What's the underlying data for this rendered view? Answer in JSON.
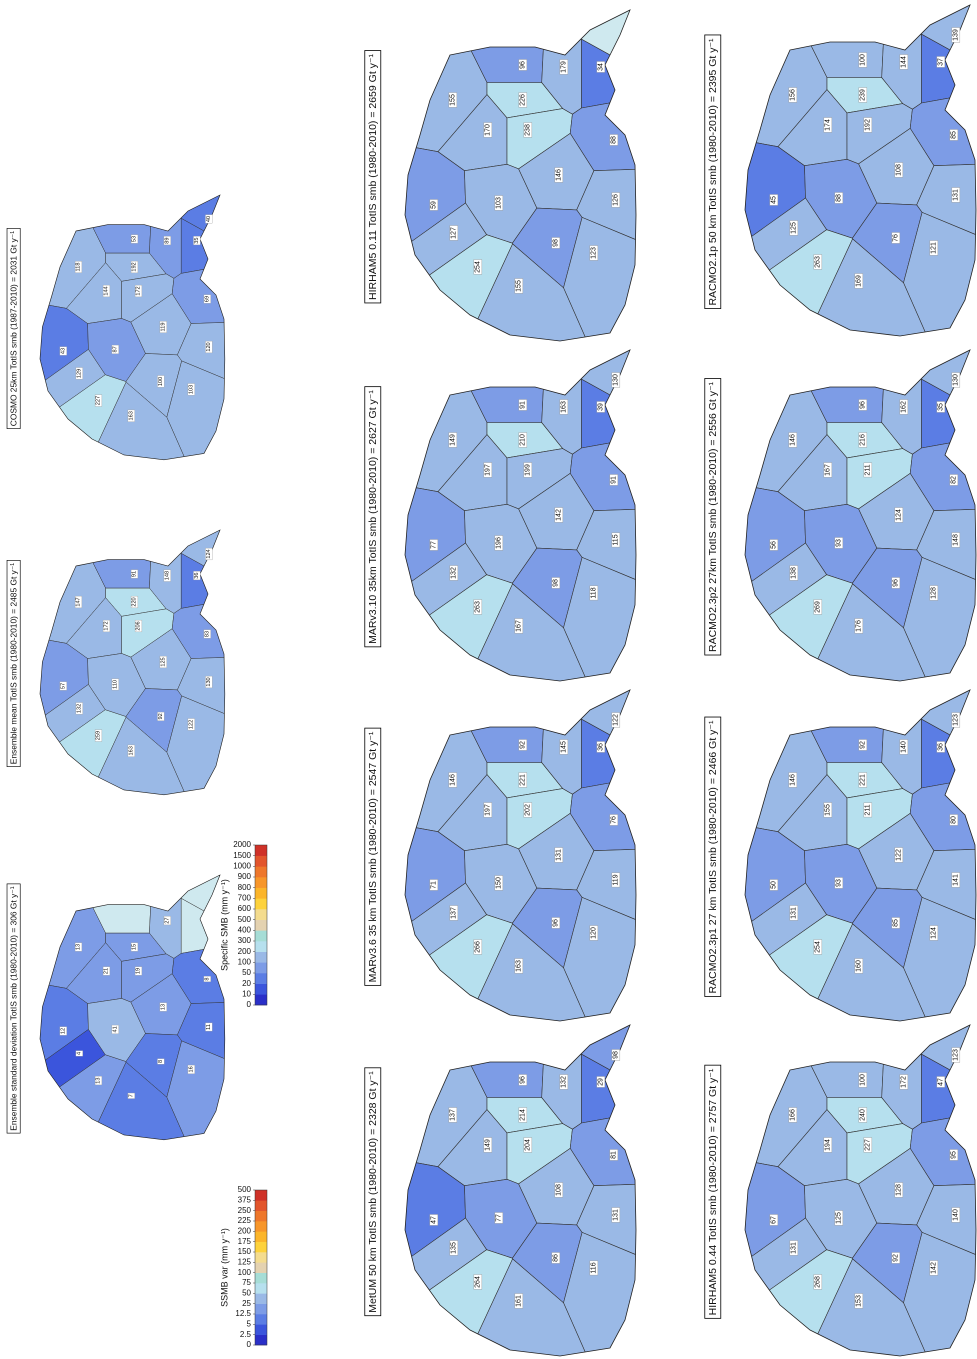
{
  "panels": [
    {
      "title": "RACMO2.1p 50 km TotIS smb (1980-2010) = 2395 Gt y⁻¹",
      "colorbar": 0,
      "values": [
        156,
        239,
        100,
        144,
        37,
        139,
        174,
        192,
        85,
        45,
        88,
        108,
        131,
        125,
        76,
        121,
        263,
        169
      ]
    },
    {
      "title": "RACMO2.3p2 27km  TotIS smb (1980-2010) = 2556 Gt y⁻¹",
      "colorbar": 0,
      "values": [
        146,
        216,
        96,
        162,
        35,
        130,
        167,
        211,
        82,
        56,
        93,
        124,
        148,
        138,
        96,
        128,
        269,
        176
      ]
    },
    {
      "title": "RACMO2.3p1 27 km  TotIS smb (1980-2010) = 2466 Gt y⁻¹",
      "colorbar": 0,
      "values": [
        146,
        221,
        92,
        140,
        36,
        123,
        155,
        211,
        80,
        50,
        93,
        122,
        141,
        131,
        85,
        124,
        254,
        160
      ]
    },
    {
      "title": "HIRHAM5 0.44 TotIS smb (1980-2010) = 2757 Gt y⁻¹",
      "colorbar": 0,
      "values": [
        166,
        240,
        100,
        172,
        47,
        123,
        194,
        227,
        95,
        67,
        125,
        128,
        140,
        131,
        92,
        142,
        268,
        153
      ]
    },
    {
      "title": "HIRHAM5 0.11 TotIS smb (1980-2010) = 2659 Gt y⁻¹",
      "colorbar": 0,
      "values": [
        155,
        226,
        96,
        179,
        34,
        null,
        170,
        238,
        88,
        59,
        103,
        146,
        126,
        127,
        98,
        123,
        254,
        155
      ]
    },
    {
      "title": "MARv3.10 35km TotIS smb (1980-2010) = 2627 Gt y⁻¹",
      "colorbar": 0,
      "values": [
        149,
        210,
        91,
        163,
        39,
        130,
        197,
        199,
        91,
        77,
        196,
        142,
        115,
        132,
        98,
        118,
        263,
        167
      ]
    },
    {
      "title": "MARv3.6 35 km TotIS smb (1980-2010) = 2547 Gt y⁻¹",
      "colorbar": 0,
      "values": [
        146,
        221,
        92,
        145,
        36,
        122,
        197,
        202,
        76,
        71,
        150,
        131,
        119,
        137,
        96,
        120,
        266,
        163
      ]
    },
    {
      "title": "MetUM 50 km TotIS smb (1980-2010) = 2328 Gt y⁻¹",
      "colorbar": 0,
      "values": [
        137,
        214,
        96,
        132,
        29,
        98,
        149,
        204,
        81,
        47,
        77,
        108,
        131,
        135,
        86,
        116,
        264,
        161
      ]
    },
    {
      "title": "COSMO 25km TotIS smb (1987-2010) = 2031 Gt y⁻¹",
      "colorbar": 0,
      "values": [
        118,
        192,
        53,
        89,
        35,
        40,
        144,
        172,
        69,
        43,
        87,
        119,
        120,
        129,
        100,
        103,
        227,
        163
      ]
    },
    {
      "title": "Ensemble mean TotIS smb (1980-2010) = 2485 Gt y⁻¹",
      "colorbar": 0,
      "values": [
        147,
        220,
        91,
        148,
        36,
        124,
        172,
        206,
        83,
        57,
        110,
        125,
        130,
        132,
        92,
        122,
        259,
        163
      ]
    },
    {
      "title": "Ensemble standard deviation TotIS smb (1980-2010) = 306 Gt y⁻¹",
      "colorbar": 1,
      "values": [
        13,
        15,
        null,
        27,
        null,
        null,
        21,
        19,
        8,
        12,
        41,
        13,
        11,
        4,
        8,
        16,
        13,
        7
      ]
    }
  ],
  "colorbars": [
    {
      "label": "Specific SMB (mm y⁻¹)",
      "ticks": [
        0,
        10,
        20,
        50,
        100,
        200,
        300,
        400,
        500,
        600,
        700,
        800,
        900,
        1000,
        1500,
        2000
      ],
      "colors": [
        "#2a2fc8",
        "#3b55dc",
        "#5b7de4",
        "#7d9ce6",
        "#9ab9e6",
        "#b6e0ee",
        "#a6ddd6",
        "#e4d2b0",
        "#f4dc8e",
        "#fdd23c",
        "#fbb52a",
        "#f7962a",
        "#ee772b",
        "#e2552c",
        "#cf3128"
      ]
    },
    {
      "label": "SSMB var (mm y⁻¹)",
      "ticks": [
        0,
        2.5,
        5,
        12.5,
        25,
        50,
        75,
        100,
        125,
        150,
        175,
        200,
        225,
        250,
        375,
        500
      ],
      "colors": [
        "#2a2fc8",
        "#3b55dc",
        "#5b7de4",
        "#7d9ce6",
        "#9ab9e6",
        "#b6e0ee",
        "#a6ddd6",
        "#e4d2b0",
        "#f4dc8e",
        "#fdd23c",
        "#fbb52a",
        "#f7962a",
        "#ee772b",
        "#e2552c",
        "#cf3128"
      ]
    }
  ]
}
